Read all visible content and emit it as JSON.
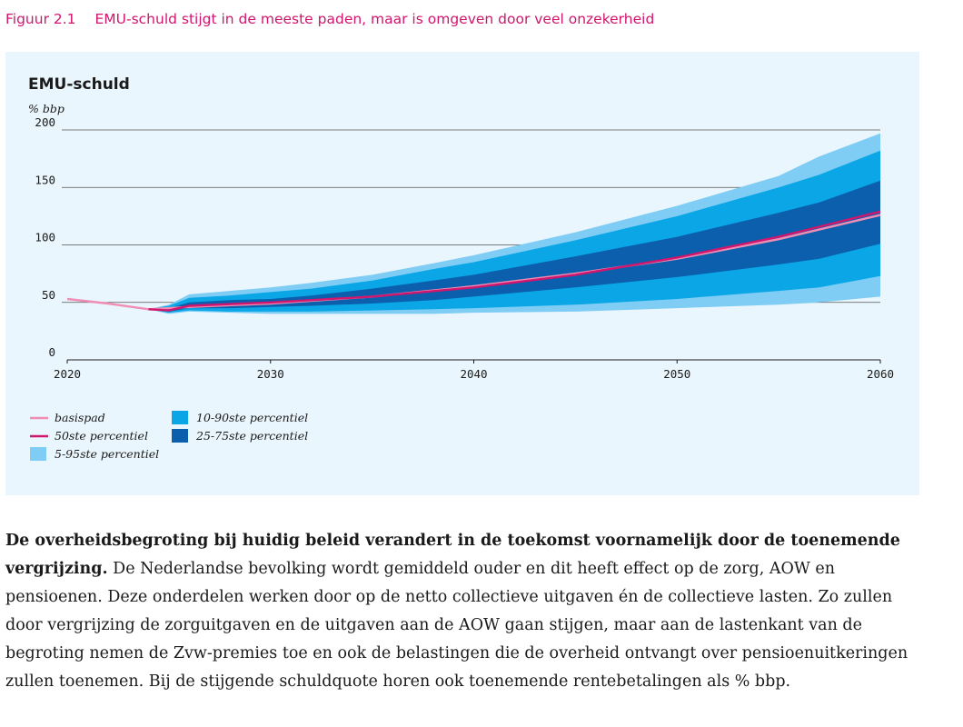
{
  "figure": {
    "number": "Figuur 2.1",
    "caption": "EMU-schuld stijgt in de meeste paden, maar is omgeven door veel onzekerheid"
  },
  "chart_data": {
    "type": "area",
    "title": "EMU-schuld",
    "ylabel": "% bbp",
    "xlabel": "",
    "xlim": [
      2020,
      2060
    ],
    "ylim": [
      0,
      200
    ],
    "x_ticks": [
      2020,
      2030,
      2040,
      2050,
      2060
    ],
    "y_ticks": [
      0,
      50,
      100,
      150,
      200
    ],
    "grid": "horizontal",
    "colors": {
      "basispad": "#f08db4",
      "p50": "#d0166d",
      "band_5_95": "#7fcdf4",
      "band_10_90": "#0aa6e6",
      "band_25_75": "#0b5fad",
      "gridline": "#555555"
    },
    "legend": [
      {
        "key": "basispad",
        "label": "basispad",
        "kind": "line"
      },
      {
        "key": "p50",
        "label": "50ste percentiel",
        "kind": "line"
      },
      {
        "key": "band_5_95",
        "label": "5-95ste percentiel",
        "kind": "box"
      },
      {
        "key": "band_10_90",
        "label": "10-90ste percentiel",
        "kind": "box"
      },
      {
        "key": "band_25_75",
        "label": "25-75ste percentiel",
        "kind": "box"
      }
    ],
    "series": [
      {
        "name": "basispad",
        "x": [
          2020,
          2022,
          2024,
          2026,
          2030,
          2035,
          2040,
          2045,
          2050,
          2055,
          2060
        ],
        "values": [
          53,
          49,
          44,
          46,
          49,
          55,
          64,
          75,
          88,
          105,
          126
        ]
      },
      {
        "name": "50ste percentiel",
        "x": [
          2024,
          2025,
          2026,
          2030,
          2035,
          2040,
          2045,
          2050,
          2055,
          2060
        ],
        "values": [
          44,
          43,
          47,
          50,
          55,
          63,
          74,
          89,
          107,
          129
        ]
      }
    ],
    "bands": {
      "x": [
        2024,
        2025,
        2026,
        2028,
        2030,
        2032,
        2035,
        2038,
        2040,
        2045,
        2050,
        2055,
        2057,
        2060
      ],
      "p5": [
        44,
        40,
        42,
        41,
        40,
        40,
        40,
        40,
        41,
        42,
        45,
        48,
        50,
        55
      ],
      "p10": [
        44,
        41,
        43,
        42,
        42,
        42,
        43,
        44,
        45,
        48,
        53,
        60,
        63,
        73
      ],
      "p25": [
        44,
        42,
        45,
        45,
        46,
        47,
        49,
        52,
        55,
        63,
        72,
        83,
        88,
        101
      ],
      "p75": [
        44,
        45,
        50,
        52,
        53,
        56,
        62,
        69,
        74,
        90,
        107,
        128,
        137,
        156
      ],
      "p90": [
        44,
        47,
        54,
        56,
        59,
        62,
        69,
        79,
        85,
        104,
        125,
        150,
        161,
        182
      ],
      "p95": [
        44,
        48,
        57,
        60,
        63,
        67,
        74,
        84,
        91,
        111,
        134,
        160,
        177,
        197
      ]
    }
  },
  "body": {
    "lead": "De overheidsbegroting bij huidig beleid verandert in de toekomst voornamelijk door de toenemende vergrijzing.",
    "text": " De Nederlandse bevolking wordt gemiddeld ouder en dit heeft effect op de zorg, AOW en pensioenen. Deze onderdelen werken door op de netto collectieve uitgaven én de collectieve lasten. Zo zullen door vergrijzing de zorguitgaven en de uitgaven aan de AOW gaan stijgen, maar aan de lastenkant van de begroting nemen de Zvw-premies toe en ook de belastingen die de overheid ontvangt over pensioenuitkeringen zullen toenemen. Bij de stijgende schuldquote horen ook toenemende rentebetalingen als % bbp."
  }
}
